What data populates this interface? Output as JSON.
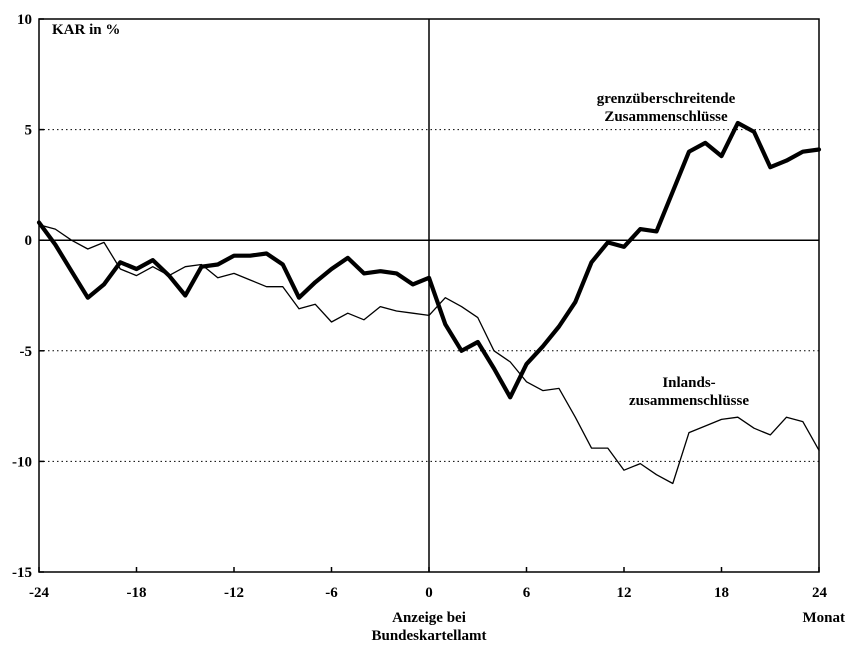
{
  "chart_data": {
    "type": "line",
    "ylabel": "KAR in %",
    "xlabel": "Anzeige bei Bundeskartellamt",
    "xlabel_lines": [
      "Anzeige bei",
      "Bundeskartellamt"
    ],
    "x_unit_label": "Monat",
    "xlim": [
      -24,
      24
    ],
    "ylim": [
      -15,
      10
    ],
    "x_ticks": [
      -24,
      -18,
      -12,
      -6,
      0,
      6,
      12,
      18,
      24
    ],
    "x_tick_labels": [
      "-24",
      "-18",
      "-12",
      "-6",
      "0",
      "6",
      "12",
      "18",
      "24"
    ],
    "y_ticks": [
      -15,
      -10,
      -5,
      0,
      5,
      10
    ],
    "y_tick_labels": [
      "-15",
      "-10",
      "-5",
      "0",
      "5",
      "10"
    ],
    "grid": "dotted horizontal at -10 and 5",
    "series": [
      {
        "name": "grenzüberschreitende Zusammenschlüsse",
        "label_lines": [
          "grenzüberschreitende",
          "Zusammenschlüsse"
        ],
        "line": "thick",
        "x": [
          -24,
          -23,
          -22,
          -21,
          -20,
          -19,
          -18,
          -17,
          -16,
          -15,
          -14,
          -13,
          -12,
          -11,
          -10,
          -9,
          -8,
          -7,
          -6,
          -5,
          -4,
          -3,
          -2,
          -1,
          0,
          1,
          2,
          3,
          4,
          5,
          6,
          7,
          8,
          9,
          10,
          11,
          12,
          13,
          14,
          15,
          16,
          17,
          18,
          19,
          20,
          21,
          22,
          23,
          24
        ],
        "values": [
          0.8,
          -0.2,
          -1.4,
          -2.6,
          -2.0,
          -1.0,
          -1.3,
          -0.9,
          -1.6,
          -2.5,
          -1.2,
          -1.1,
          -0.7,
          -0.7,
          -0.6,
          -1.1,
          -2.6,
          -1.9,
          -1.3,
          -0.8,
          -1.5,
          -1.4,
          -1.5,
          -2.0,
          -1.7,
          -3.8,
          -5.0,
          -4.6,
          -5.8,
          -7.1,
          -5.6,
          -4.8,
          -3.9,
          -2.8,
          -1.0,
          -0.1,
          -0.3,
          0.5,
          0.4,
          2.2,
          4.0,
          4.4,
          3.8,
          5.3,
          4.9,
          3.3,
          3.6,
          4.0,
          4.1
        ]
      },
      {
        "name": "Inlandszusammenschlüsse",
        "label_lines": [
          "Inlands-",
          "zusammenschlüsse"
        ],
        "line": "thin",
        "x": [
          -24,
          -23,
          -22,
          -21,
          -20,
          -19,
          -18,
          -17,
          -16,
          -15,
          -14,
          -13,
          -12,
          -11,
          -10,
          -9,
          -8,
          -7,
          -6,
          -5,
          -4,
          -3,
          -2,
          -1,
          0,
          1,
          2,
          3,
          4,
          5,
          6,
          7,
          8,
          9,
          10,
          11,
          12,
          13,
          14,
          15,
          16,
          17,
          18,
          19,
          20,
          21,
          22,
          23,
          24
        ],
        "values": [
          0.7,
          0.5,
          0.0,
          -0.4,
          -0.1,
          -1.3,
          -1.6,
          -1.2,
          -1.6,
          -1.2,
          -1.1,
          -1.7,
          -1.5,
          -1.8,
          -2.1,
          -2.1,
          -3.1,
          -2.9,
          -3.7,
          -3.3,
          -3.6,
          -3.0,
          -3.2,
          -3.3,
          -3.4,
          -2.6,
          -3.0,
          -3.5,
          -5.0,
          -5.5,
          -6.4,
          -6.8,
          -6.7,
          -8.0,
          -9.4,
          -9.4,
          -10.4,
          -10.1,
          -10.6,
          -11.0,
          -8.7,
          -8.4,
          -8.1,
          -8.0,
          -8.5,
          -8.8,
          -8.0,
          -8.2,
          -9.5
        ]
      }
    ]
  }
}
